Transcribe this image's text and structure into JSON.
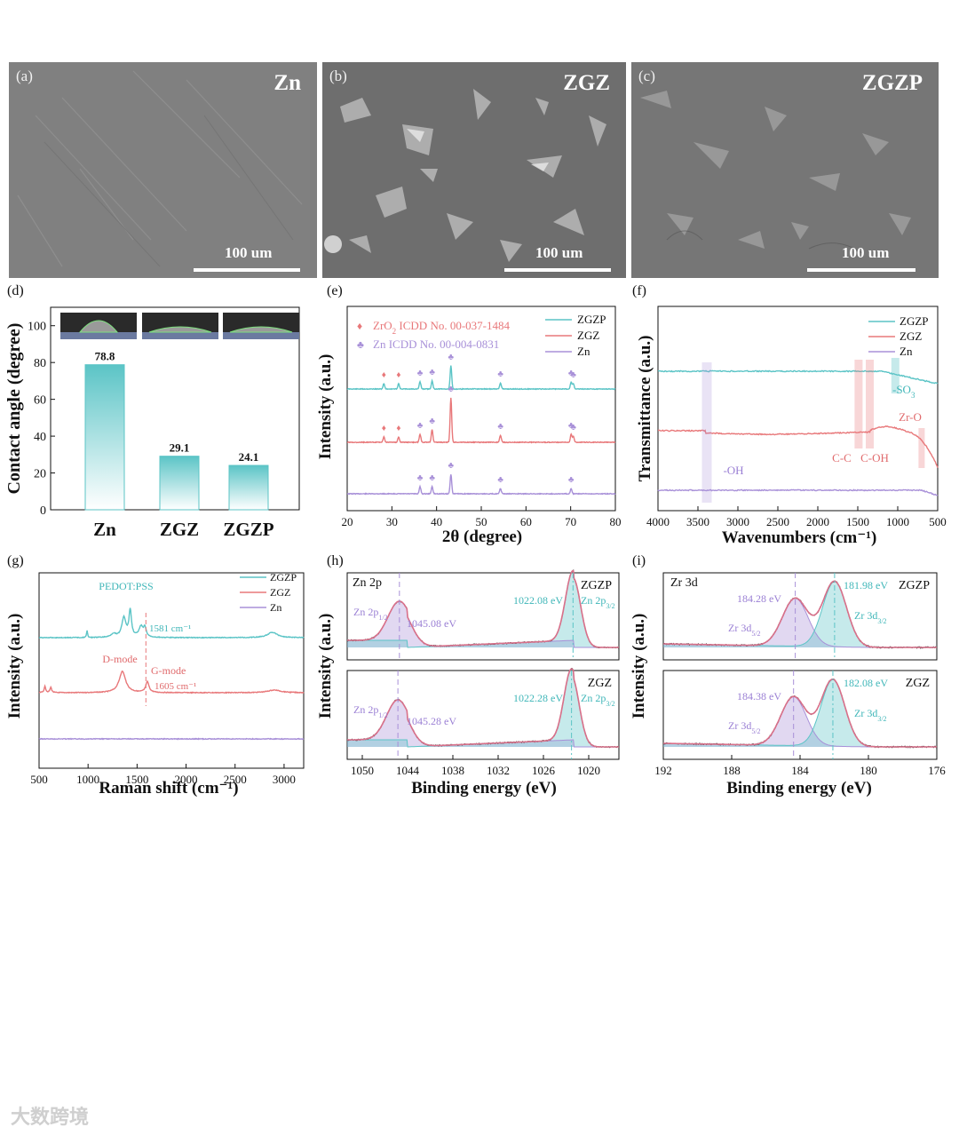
{
  "colors": {
    "teal": "#5bc4c6",
    "red": "#e8787a",
    "purple": "#a890d8",
    "text_teal": "#3fb6b8",
    "text_red": "#e06a6c",
    "text_purple": "#9a7fd4",
    "sem_gray": "#7d7d7d",
    "envelope": "#d9708a"
  },
  "sem_panels": [
    {
      "tag": "(a)",
      "name": "Zn",
      "scale": "100 um"
    },
    {
      "tag": "(b)",
      "name": "ZGZ",
      "scale": "100 um"
    },
    {
      "tag": "(c)",
      "name": "ZGZP",
      "scale": "100 um"
    }
  ],
  "watermark": "大数跨境",
  "chart_data": [
    {
      "panel": "(d)",
      "type": "bar",
      "ylabel": "Contact angle (degree)",
      "categories": [
        "Zn",
        "ZGZ",
        "ZGZP"
      ],
      "values": [
        78.8,
        29.1,
        24.1
      ],
      "value_labels": [
        "78.8",
        "29.1",
        "24.1"
      ],
      "ylim": [
        0,
        110
      ],
      "yticks": [
        0,
        20,
        40,
        60,
        80,
        100
      ],
      "inset_photos": [
        "water droplet on Zn",
        "water droplet on ZGZ",
        "water droplet on ZGZP"
      ]
    },
    {
      "panel": "(e)",
      "type": "line",
      "xlabel": "2θ (degree)",
      "ylabel": "Intensity (a.u.)",
      "xlim": [
        20,
        80
      ],
      "xticks": [
        20,
        30,
        40,
        50,
        60,
        70,
        80
      ],
      "series": [
        {
          "name": "ZGZP",
          "peaks": [
            28.2,
            31.5,
            36.3,
            39.0,
            43.2,
            54.3,
            70.1,
            70.6
          ]
        },
        {
          "name": "ZGZ",
          "peaks": [
            28.2,
            31.5,
            36.3,
            39.0,
            43.2,
            54.3,
            70.1,
            70.6
          ]
        },
        {
          "name": "Zn",
          "peaks": [
            36.3,
            39.0,
            43.2,
            54.3,
            70.1
          ]
        }
      ],
      "legend_refs": [
        {
          "symbol": "♦",
          "prefix": "ZrO",
          "sub": "2",
          "suffix": " ICDD No. 00-037-1484"
        },
        {
          "symbol": "♣",
          "text": "Zn ICDD No. 00-004-0831"
        }
      ]
    },
    {
      "panel": "(f)",
      "type": "line",
      "xlabel": "Wavenumbers (cm⁻¹)",
      "ylabel": "Transmittance (a.u.)",
      "xlim": [
        4000,
        500
      ],
      "xticks": [
        4000,
        3500,
        3000,
        2500,
        2000,
        1500,
        1000,
        500
      ],
      "series": [
        {
          "name": "ZGZP"
        },
        {
          "name": "ZGZ"
        },
        {
          "name": "Zn"
        }
      ],
      "annotations": [
        {
          "label": "-OH",
          "x": 3400
        },
        {
          "label": "C-C",
          "x": 1500
        },
        {
          "label": "C-OH",
          "x": 1380
        },
        {
          "label": "-SO",
          "sub": "3",
          "x": 1040
        },
        {
          "label": "Zr-O",
          "x": 720
        }
      ]
    },
    {
      "panel": "(g)",
      "type": "line",
      "xlabel": "Raman shift (cm⁻¹)",
      "ylabel": "Intensity (a.u.)",
      "xlim": [
        500,
        3200
      ],
      "xticks": [
        500,
        1000,
        1500,
        2000,
        2500,
        3000
      ],
      "series": [
        {
          "name": "ZGZP"
        },
        {
          "name": "ZGZ"
        },
        {
          "name": "Zn"
        }
      ],
      "annotations": {
        "pedot": "PEDOT:PSS",
        "g_zgzp": "1581 cm⁻¹",
        "d_mode": "D-mode",
        "g_mode": "G-mode",
        "g_zgz": "1605 cm⁻¹"
      }
    },
    {
      "panel": "(h)",
      "type": "line",
      "title": "Zn 2p",
      "xlabel": "Binding energy (eV)",
      "ylabel": "Intensity (a.u.)",
      "xlim": [
        1052,
        1016
      ],
      "xticks": [
        1050,
        1044,
        1038,
        1032,
        1026,
        1020
      ],
      "subplots": [
        {
          "name": "ZGZP",
          "peak_2p12": "1045.08 eV",
          "peak_2p32": "1022.08 eV",
          "x1": 1045.08,
          "x2": 1022.08
        },
        {
          "name": "ZGZ",
          "peak_2p12": "1045.28 eV",
          "peak_2p32": "1022.28 eV",
          "x1": 1045.28,
          "x2": 1022.28
        }
      ],
      "labels": {
        "p12": "Zn 2p",
        "p12_sub": "1/2",
        "p32": "Zn 2p",
        "p32_sub": "3/2"
      }
    },
    {
      "panel": "(i)",
      "type": "line",
      "title": "Zr 3d",
      "xlabel": "Binding energy (eV)",
      "ylabel": "Intensity (a.u.)",
      "xlim": [
        192,
        176
      ],
      "xticks": [
        192,
        188,
        184,
        180,
        176
      ],
      "subplots": [
        {
          "name": "ZGZP",
          "peak_3d52": "184.28 eV",
          "peak_3d32": "181.98 eV",
          "x1": 184.28,
          "x2": 181.98
        },
        {
          "name": "ZGZ",
          "peak_3d52": "184.38 eV",
          "peak_3d32": "182.08 eV",
          "x1": 184.38,
          "x2": 182.08
        }
      ],
      "labels": {
        "d52": "Zr 3d",
        "d52_sub": "5/2",
        "d32": "Zr 3d",
        "d32_sub": "3/2"
      }
    }
  ]
}
